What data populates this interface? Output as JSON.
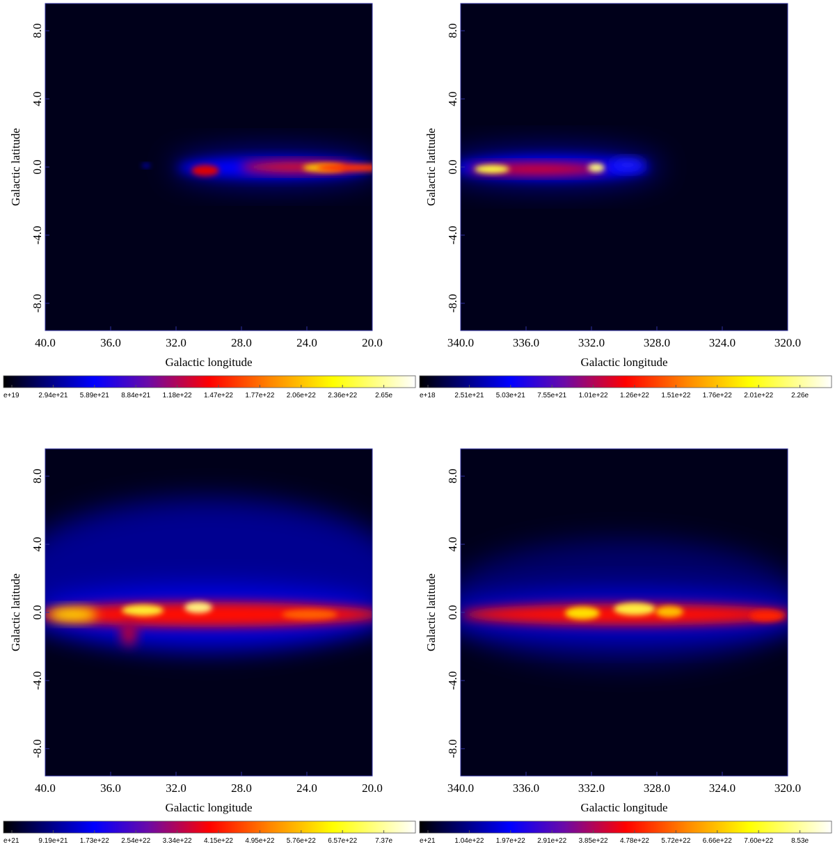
{
  "chart_data": [
    {
      "type": "heatmap",
      "xlabel": "Galactic longitude",
      "ylabel": "Galactic latitude",
      "xlim": [
        40,
        20
      ],
      "ylim": [
        -9.6,
        9.6
      ],
      "xticks": [
        {
          "value": 40,
          "label": "40.0"
        },
        {
          "value": 36,
          "label": "36.0"
        },
        {
          "value": 32,
          "label": "32.0"
        },
        {
          "value": 28,
          "label": "28.0"
        },
        {
          "value": 24,
          "label": "24.0"
        },
        {
          "value": 20,
          "label": "20.0"
        }
      ],
      "yticks": [
        {
          "value": 8,
          "label": "8.0"
        },
        {
          "value": 4,
          "label": "4.0"
        },
        {
          "value": 0,
          "label": "0.0"
        },
        {
          "value": -4,
          "label": "-4.0"
        },
        {
          "value": -8,
          "label": "-8.0"
        }
      ],
      "colorbar_labels": [
        "e+19",
        "2.94e+21",
        "5.89e+21",
        "8.84e+21",
        "1.18e+22",
        "1.47e+22",
        "1.77e+22",
        "2.06e+22",
        "2.36e+22",
        "2.65e"
      ]
    },
    {
      "type": "heatmap",
      "xlabel": "Galactic longitude",
      "ylabel": "Galactic latitude",
      "xlim": [
        340,
        320
      ],
      "ylim": [
        -9.6,
        9.6
      ],
      "xticks": [
        {
          "value": 340,
          "label": "340.0"
        },
        {
          "value": 336,
          "label": "336.0"
        },
        {
          "value": 332,
          "label": "332.0"
        },
        {
          "value": 328,
          "label": "328.0"
        },
        {
          "value": 324,
          "label": "324.0"
        },
        {
          "value": 320,
          "label": "320.0"
        }
      ],
      "yticks": [
        {
          "value": 8,
          "label": "8.0"
        },
        {
          "value": 4,
          "label": "4.0"
        },
        {
          "value": 0,
          "label": "0.0"
        },
        {
          "value": -4,
          "label": "-4.0"
        },
        {
          "value": -8,
          "label": "-8.0"
        }
      ],
      "colorbar_labels": [
        "e+18",
        "2.51e+21",
        "5.03e+21",
        "7.55e+21",
        "1.01e+22",
        "1.26e+22",
        "1.51e+22",
        "1.76e+22",
        "2.01e+22",
        "2.26e"
      ]
    },
    {
      "type": "heatmap",
      "xlabel": "Galactic longitude",
      "ylabel": "Galactic latitude",
      "xlim": [
        40,
        20
      ],
      "ylim": [
        -9.6,
        9.6
      ],
      "xticks": [
        {
          "value": 40,
          "label": "40.0"
        },
        {
          "value": 36,
          "label": "36.0"
        },
        {
          "value": 32,
          "label": "32.0"
        },
        {
          "value": 28,
          "label": "28.0"
        },
        {
          "value": 24,
          "label": "24.0"
        },
        {
          "value": 20,
          "label": "20.0"
        }
      ],
      "yticks": [
        {
          "value": 8,
          "label": "8.0"
        },
        {
          "value": 4,
          "label": "4.0"
        },
        {
          "value": 0,
          "label": "0.0"
        },
        {
          "value": -4,
          "label": "-4.0"
        },
        {
          "value": -8,
          "label": "-8.0"
        }
      ],
      "colorbar_labels": [
        "e+21",
        "9.19e+21",
        "1.73e+22",
        "2.54e+22",
        "3.34e+22",
        "4.15e+22",
        "4.95e+22",
        "5.76e+22",
        "6.57e+22",
        "7.37e"
      ]
    },
    {
      "type": "heatmap",
      "xlabel": "Galactic longitude",
      "ylabel": "Galactic latitude",
      "xlim": [
        340,
        320
      ],
      "ylim": [
        -9.6,
        9.6
      ],
      "xticks": [
        {
          "value": 340,
          "label": "340.0"
        },
        {
          "value": 336,
          "label": "336.0"
        },
        {
          "value": 332,
          "label": "332.0"
        },
        {
          "value": 328,
          "label": "328.0"
        },
        {
          "value": 324,
          "label": "324.0"
        },
        {
          "value": 320,
          "label": "320.0"
        }
      ],
      "yticks": [
        {
          "value": 8,
          "label": "8.0"
        },
        {
          "value": 4,
          "label": "4.0"
        },
        {
          "value": 0,
          "label": "0.0"
        },
        {
          "value": -4,
          "label": "-4.0"
        },
        {
          "value": -8,
          "label": "-8.0"
        }
      ],
      "colorbar_labels": [
        "e+21",
        "1.04e+22",
        "1.97e+22",
        "2.91e+22",
        "3.85e+22",
        "4.78e+22",
        "5.72e+22",
        "6.66e+22",
        "7.60e+22",
        "8.53e"
      ]
    }
  ]
}
